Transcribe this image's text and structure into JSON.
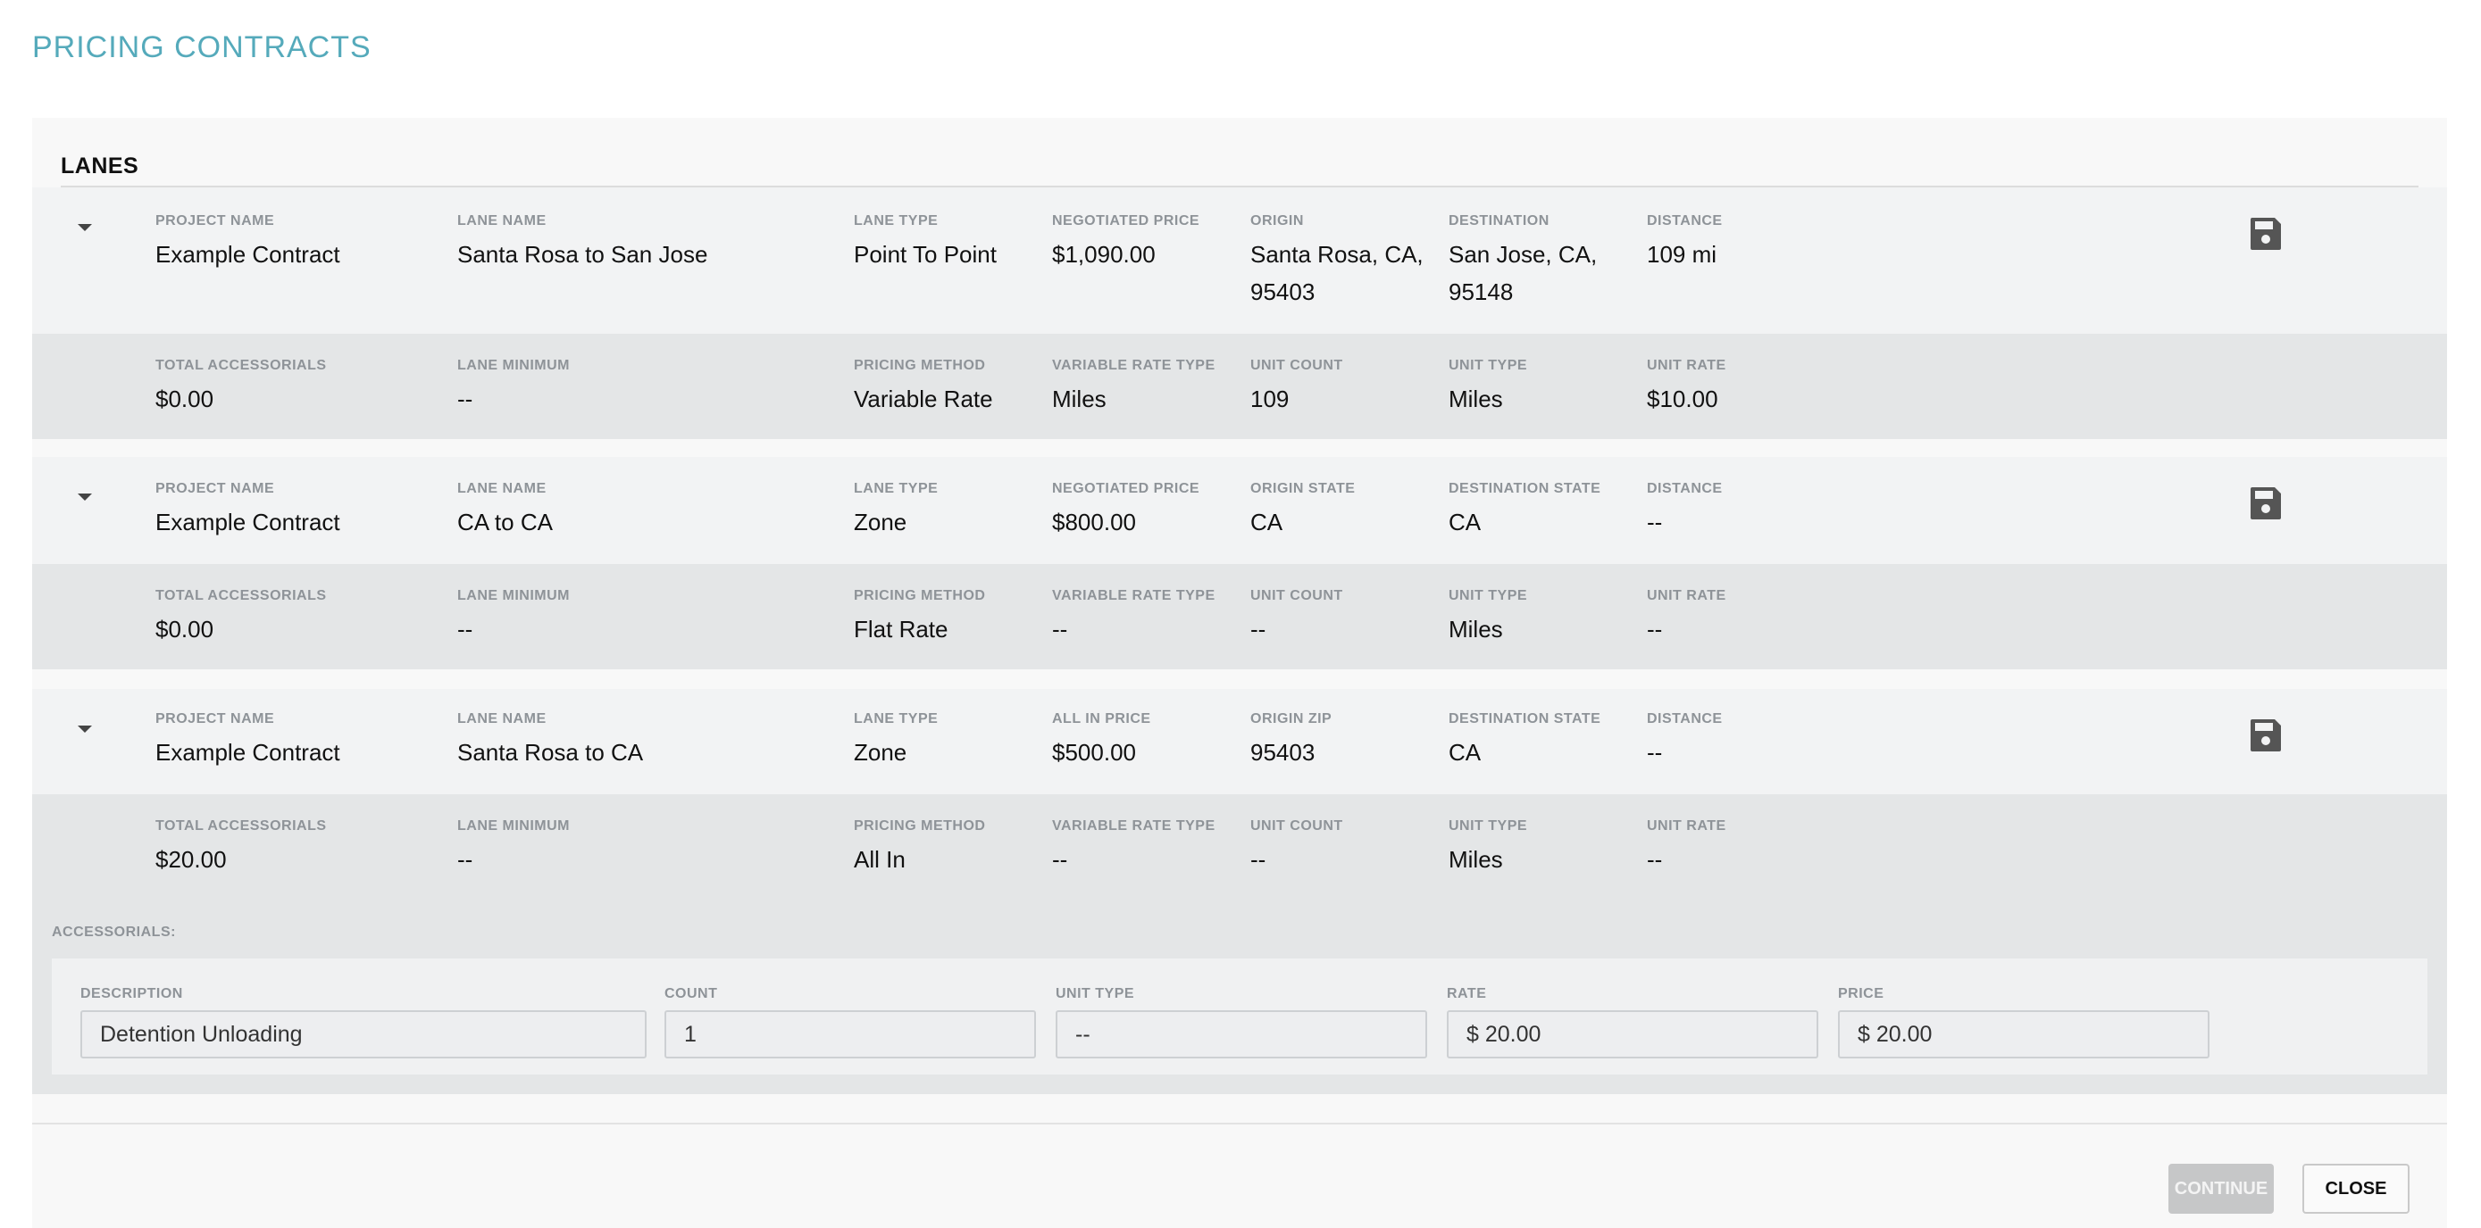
{
  "page_title": "PRICING CONTRACTS",
  "section_title": "LANES",
  "lanes": [
    {
      "main": [
        {
          "label": "PROJECT NAME",
          "value": "Example Contract"
        },
        {
          "label": "LANE NAME",
          "value": "Santa Rosa to San Jose"
        },
        {
          "label": "LANE TYPE",
          "value": "Point To Point"
        },
        {
          "label": "NEGOTIATED PRICE",
          "value": "$1,090.00"
        },
        {
          "label": "ORIGIN",
          "value": "Santa Rosa, CA, 95403"
        },
        {
          "label": "DESTINATION",
          "value": "San Jose, CA, 95148"
        },
        {
          "label": "DISTANCE",
          "value": "109 mi"
        }
      ],
      "sub": [
        {
          "label": "TOTAL ACCESSORIALS",
          "value": "$0.00"
        },
        {
          "label": "LANE MINIMUM",
          "value": "--"
        },
        {
          "label": "PRICING METHOD",
          "value": "Variable Rate"
        },
        {
          "label": "VARIABLE RATE TYPE",
          "value": "Miles"
        },
        {
          "label": "UNIT COUNT",
          "value": "109"
        },
        {
          "label": "UNIT TYPE",
          "value": "Miles"
        },
        {
          "label": "UNIT RATE",
          "value": "$10.00"
        }
      ]
    },
    {
      "main": [
        {
          "label": "PROJECT NAME",
          "value": "Example Contract"
        },
        {
          "label": "LANE NAME",
          "value": "CA to CA"
        },
        {
          "label": "LANE TYPE",
          "value": "Zone"
        },
        {
          "label": "NEGOTIATED PRICE",
          "value": "$800.00"
        },
        {
          "label": "ORIGIN STATE",
          "value": "CA"
        },
        {
          "label": "DESTINATION STATE",
          "value": "CA"
        },
        {
          "label": "DISTANCE",
          "value": "--"
        }
      ],
      "sub": [
        {
          "label": "TOTAL ACCESSORIALS",
          "value": "$0.00"
        },
        {
          "label": "LANE MINIMUM",
          "value": "--"
        },
        {
          "label": "PRICING METHOD",
          "value": "Flat Rate"
        },
        {
          "label": "VARIABLE RATE TYPE",
          "value": "--"
        },
        {
          "label": "UNIT COUNT",
          "value": "--"
        },
        {
          "label": "UNIT TYPE",
          "value": "Miles"
        },
        {
          "label": "UNIT RATE",
          "value": "--"
        }
      ]
    },
    {
      "main": [
        {
          "label": "PROJECT NAME",
          "value": "Example Contract"
        },
        {
          "label": "LANE NAME",
          "value": "Santa Rosa to CA"
        },
        {
          "label": "LANE TYPE",
          "value": "Zone"
        },
        {
          "label": "ALL IN PRICE",
          "value": "$500.00"
        },
        {
          "label": "ORIGIN ZIP",
          "value": "95403"
        },
        {
          "label": "DESTINATION STATE",
          "value": "CA"
        },
        {
          "label": "DISTANCE",
          "value": "--"
        }
      ],
      "sub": [
        {
          "label": "TOTAL ACCESSORIALS",
          "value": "$20.00"
        },
        {
          "label": "LANE MINIMUM",
          "value": "--"
        },
        {
          "label": "PRICING METHOD",
          "value": "All In"
        },
        {
          "label": "VARIABLE RATE TYPE",
          "value": "--"
        },
        {
          "label": "UNIT COUNT",
          "value": "--"
        },
        {
          "label": "UNIT TYPE",
          "value": "Miles"
        },
        {
          "label": "UNIT RATE",
          "value": "--"
        }
      ]
    }
  ],
  "accessorials": {
    "title": "ACCESSORIALS:",
    "fields": [
      {
        "label": "DESCRIPTION",
        "value": "Detention Unloading"
      },
      {
        "label": "COUNT",
        "value": "1"
      },
      {
        "label": "UNIT TYPE",
        "value": "--"
      },
      {
        "label": "RATE",
        "value": "$ 20.00"
      },
      {
        "label": "PRICE",
        "value": "$ 20.00"
      }
    ]
  },
  "buttons": {
    "continue": "CONTINUE",
    "close": "CLOSE"
  },
  "icons": {
    "toggle": "caret-down-icon",
    "save": "save-icon"
  }
}
